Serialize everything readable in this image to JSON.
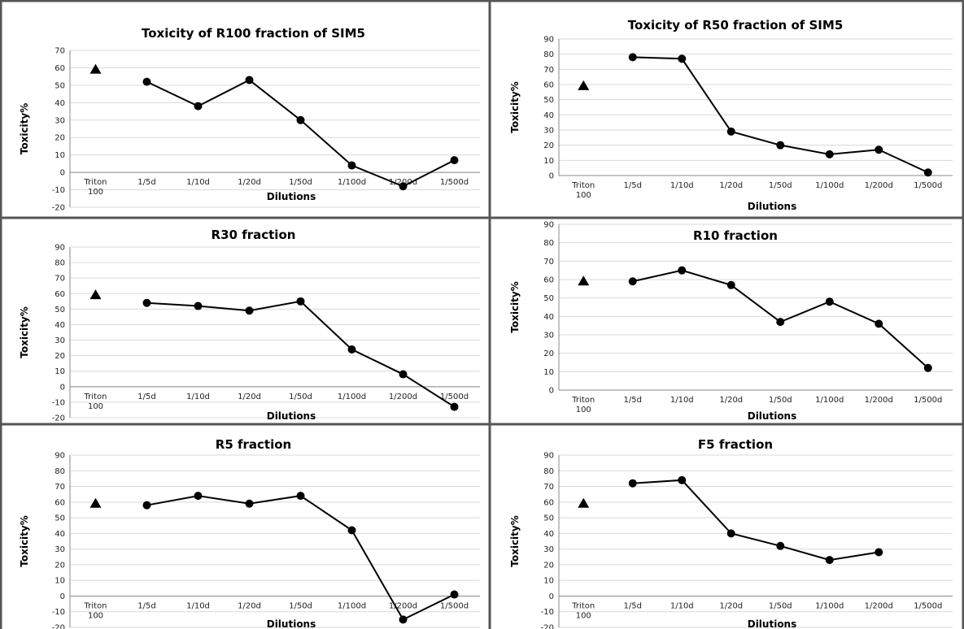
{
  "chart_data": [
    {
      "type": "line",
      "title": "Toxicity of R100 fraction of SIM5",
      "xlabel": "Dilutions",
      "ylabel": "Toxicity%",
      "ylim": [
        -20,
        70
      ],
      "ystep": 10,
      "categories": [
        "Triton 100",
        "1/5d",
        "1/10d",
        "1/20d",
        "1/50d",
        "1/100d",
        "1/200d",
        "1/500d"
      ],
      "series": [
        {
          "marker": "triangle",
          "values": [
            59,
            null,
            null,
            null,
            null,
            null,
            null,
            null
          ]
        },
        {
          "marker": "circle",
          "values": [
            null,
            52,
            38,
            53,
            30,
            4,
            -8,
            7
          ]
        }
      ]
    },
    {
      "type": "line",
      "title": "Toxicity of R50 fraction of SIM5",
      "xlabel": "Dilutions",
      "ylabel": "Toxicity%",
      "ylim": [
        0,
        90
      ],
      "ystep": 10,
      "categories": [
        "Triton 100",
        "1/5d",
        "1/10d",
        "1/20d",
        "1/50d",
        "1/100d",
        "1/200d",
        "1/500d"
      ],
      "series": [
        {
          "marker": "triangle",
          "values": [
            59,
            null,
            null,
            null,
            null,
            null,
            null,
            null
          ]
        },
        {
          "marker": "circle",
          "values": [
            null,
            78,
            77,
            29,
            20,
            14,
            17,
            2
          ]
        }
      ]
    },
    {
      "type": "line",
      "title": "R30 fraction",
      "xlabel": "Dilutions",
      "ylabel": "Toxicity%",
      "ylim": [
        -20,
        90
      ],
      "ystep": 10,
      "categories": [
        "Triton 100",
        "1/5d",
        "1/10d",
        "1/20d",
        "1/50d",
        "1/100d",
        "1/200d",
        "1/500d"
      ],
      "series": [
        {
          "marker": "triangle",
          "values": [
            59,
            null,
            null,
            null,
            null,
            null,
            null,
            null
          ]
        },
        {
          "marker": "circle",
          "values": [
            null,
            54,
            52,
            49,
            55,
            24,
            8,
            -13
          ]
        }
      ]
    },
    {
      "type": "line",
      "title": "R10 fraction",
      "xlabel": "Dilutions",
      "ylabel": "Toxicity%",
      "ylim": [
        0,
        90
      ],
      "ystep": 10,
      "categories": [
        "Triton 100",
        "1/5d",
        "1/10d",
        "1/20d",
        "1/50d",
        "1/100d",
        "1/200d",
        "1/500d"
      ],
      "series": [
        {
          "marker": "triangle",
          "values": [
            59,
            null,
            null,
            null,
            null,
            null,
            null,
            null
          ]
        },
        {
          "marker": "circle",
          "values": [
            null,
            59,
            65,
            57,
            37,
            48,
            36,
            12
          ]
        }
      ]
    },
    {
      "type": "line",
      "title": "R5 fraction",
      "xlabel": "Dilutions",
      "ylabel": "Toxicity%",
      "ylim": [
        -20,
        90
      ],
      "ystep": 10,
      "categories": [
        "Triton 100",
        "1/5d",
        "1/10d",
        "1/20d",
        "1/50d",
        "1/100d",
        "1/200d",
        "1/500d"
      ],
      "series": [
        {
          "marker": "triangle",
          "values": [
            59,
            null,
            null,
            null,
            null,
            null,
            null,
            null
          ]
        },
        {
          "marker": "circle",
          "values": [
            null,
            58,
            64,
            59,
            64,
            42,
            -15,
            1
          ]
        }
      ]
    },
    {
      "type": "line",
      "title": "F5 fraction",
      "xlabel": "Dilutions",
      "ylabel": "Toxicity%",
      "ylim": [
        -20,
        90
      ],
      "ystep": 10,
      "categories": [
        "Triton 100",
        "1/5d",
        "1/10d",
        "1/20d",
        "1/50d",
        "1/100d",
        "1/200d",
        "1/500d"
      ],
      "series": [
        {
          "marker": "triangle",
          "values": [
            59,
            null,
            null,
            null,
            null,
            null,
            null,
            null
          ]
        },
        {
          "marker": "circle",
          "values": [
            null,
            72,
            74,
            40,
            32,
            23,
            28,
            null
          ]
        }
      ]
    }
  ]
}
